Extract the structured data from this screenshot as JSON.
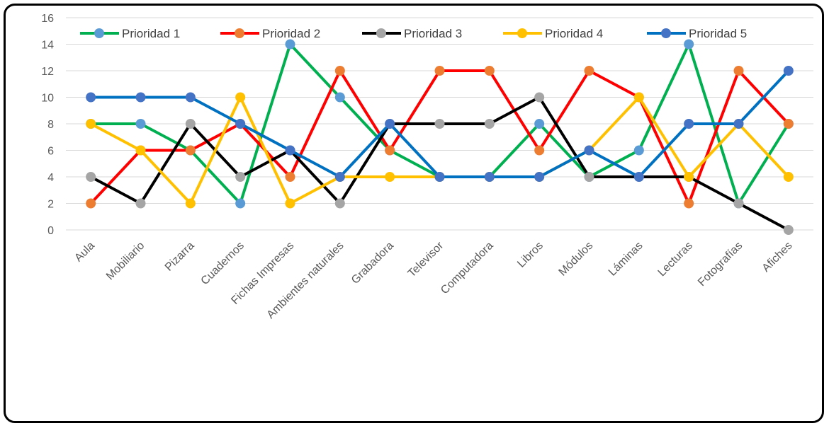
{
  "chart_data": {
    "type": "line",
    "title": "",
    "xlabel": "",
    "ylabel": "",
    "ylim": [
      0,
      16
    ],
    "yticks": [
      0,
      2,
      4,
      6,
      8,
      10,
      12,
      14,
      16
    ],
    "grid": "horizontal",
    "legend_position": "top",
    "categories": [
      "Aula",
      "Mobiliario",
      "Pizarra",
      "Cuadernos",
      "Fichas Impresas",
      "Ambientes naturales",
      "Grabadora",
      "Televisor",
      "Computadora",
      "Libros",
      "Módulos",
      "Láminas",
      "Lecturas",
      "Fotografías",
      "Afiches"
    ],
    "series": [
      {
        "name": "Prioridad 1",
        "line_color": "#00b050",
        "marker_color": "#5b9bd5",
        "values": [
          8,
          8,
          6,
          2,
          14,
          10,
          6,
          4,
          4,
          8,
          4,
          6,
          14,
          2,
          8
        ]
      },
      {
        "name": "Prioridad 2",
        "line_color": "#ff0000",
        "marker_color": "#ed7d31",
        "values": [
          2,
          6,
          6,
          8,
          4,
          12,
          6,
          12,
          12,
          6,
          12,
          10,
          2,
          12,
          8
        ]
      },
      {
        "name": "Prioridad 3",
        "line_color": "#000000",
        "marker_color": "#a5a5a5",
        "values": [
          4,
          2,
          8,
          4,
          6,
          2,
          8,
          8,
          8,
          10,
          4,
          4,
          4,
          2,
          0
        ]
      },
      {
        "name": "Prioridad 4",
        "line_color": "#ffc000",
        "marker_color": "#ffc000",
        "values": [
          8,
          6,
          2,
          10,
          2,
          4,
          4,
          4,
          4,
          4,
          6,
          10,
          4,
          8,
          4
        ]
      },
      {
        "name": "Prioridad 5",
        "line_color": "#0070c0",
        "marker_color": "#4472c4",
        "values": [
          10,
          10,
          10,
          8,
          6,
          4,
          8,
          4,
          4,
          4,
          6,
          4,
          8,
          8,
          12
        ]
      }
    ]
  }
}
